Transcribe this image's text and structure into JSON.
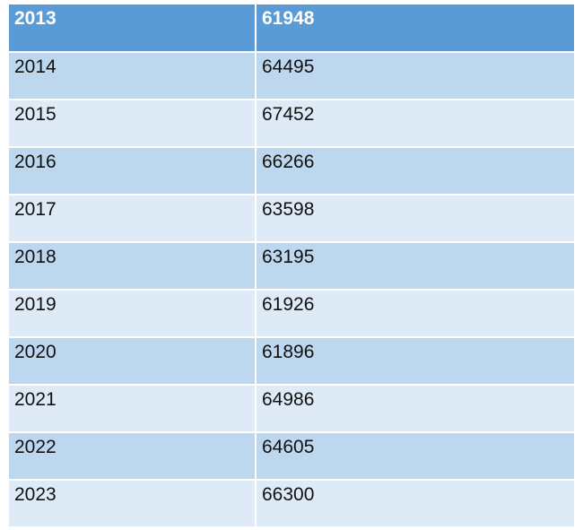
{
  "table": {
    "header": [
      "2013",
      "61948"
    ],
    "rows": [
      [
        "2014",
        "64495"
      ],
      [
        "2015",
        "67452"
      ],
      [
        "2016",
        "66266"
      ],
      [
        "2017",
        "63598"
      ],
      [
        "2018",
        "63195"
      ],
      [
        "2019",
        "61926"
      ],
      [
        "2020",
        "61896"
      ],
      [
        "2021",
        "64986"
      ],
      [
        "2022",
        "64605"
      ],
      [
        "2023",
        "66300"
      ]
    ]
  }
}
